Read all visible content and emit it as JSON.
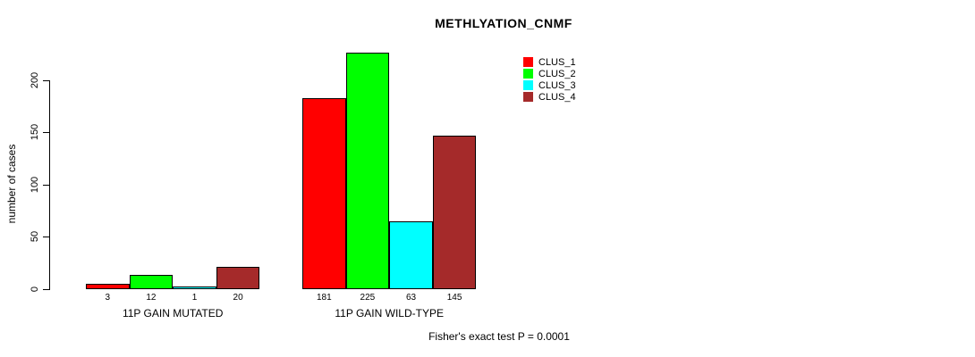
{
  "chart_data": {
    "type": "bar",
    "title": "METHLYATION_CNMF",
    "xlabel": "",
    "ylabel": "number of cases",
    "categories": [
      "11P GAIN MUTATED",
      "11P GAIN WILD-TYPE"
    ],
    "series": [
      {
        "name": "CLUS_1",
        "color": "#ff0000",
        "values": [
          3,
          181
        ]
      },
      {
        "name": "CLUS_2",
        "color": "#00ff00",
        "values": [
          12,
          225
        ]
      },
      {
        "name": "CLUS_3",
        "color": "#00ffff",
        "values": [
          1,
          63
        ]
      },
      {
        "name": "CLUS_4",
        "color": "#a52a2a",
        "values": [
          20,
          145
        ]
      }
    ],
    "yticks": [
      0,
      50,
      100,
      150,
      200
    ],
    "ylim": [
      0,
      235
    ],
    "grid": false,
    "legend_position": "top-right",
    "bar_value_labels_shown": true,
    "annotation": "Fisher's exact test P = 0.0001"
  },
  "colors": {
    "axis": "#000000",
    "bar_border": "#000000",
    "background": "#ffffff"
  }
}
